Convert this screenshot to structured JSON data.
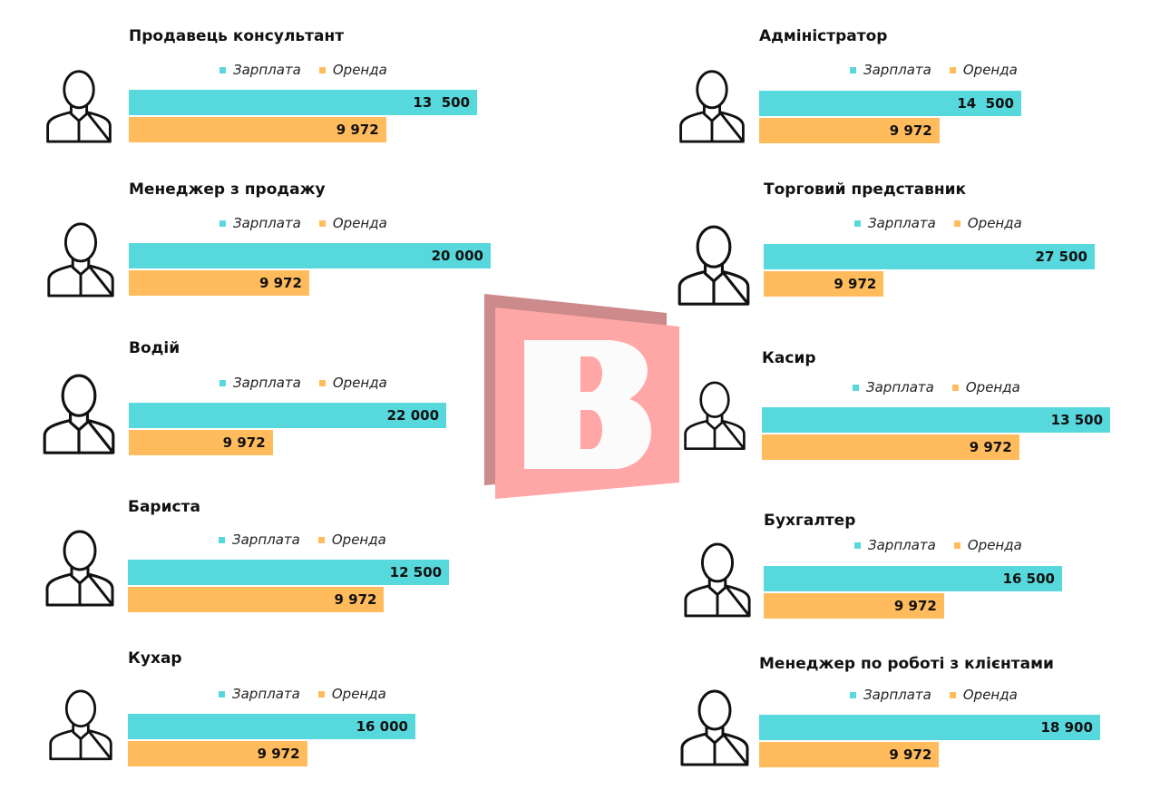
{
  "colors": {
    "salary": "#57d8dd",
    "rent": "#ffbb5c",
    "logo_back": "#cc8a8a",
    "logo_front": "#ffa6a6",
    "logo_letter": "#fbfbfb"
  },
  "legend": {
    "salary": "Зарплата",
    "rent": "Оренда"
  },
  "logo": {
    "letter": "B"
  },
  "chart_data": [
    {
      "type": "bar",
      "orientation": "horizontal",
      "title": "Продавець консультант",
      "icon": "saleswoman-icon",
      "series": [
        {
          "name": "Зарплата",
          "value": 13500,
          "label": "13  500"
        },
        {
          "name": "Оренда",
          "value": 9972,
          "label": "9 972"
        }
      ],
      "xlim": [
        0,
        14060
      ]
    },
    {
      "type": "bar",
      "orientation": "horizontal",
      "title": "Менеджер з продажу",
      "icon": "sales-manager-icon",
      "series": [
        {
          "name": "Зарплата",
          "value": 20000,
          "label": "20 000"
        },
        {
          "name": "Оренда",
          "value": 9972,
          "label": "9 972"
        }
      ],
      "xlim": [
        0,
        20050
      ]
    },
    {
      "type": "bar",
      "orientation": "horizontal",
      "title": "Водій",
      "icon": "driver-icon",
      "series": [
        {
          "name": "Зарплата",
          "value": 22000,
          "label": "22 000"
        },
        {
          "name": "Оренда",
          "value": 9972,
          "label": "9 972"
        }
      ],
      "xlim": [
        0,
        25140
      ]
    },
    {
      "type": "bar",
      "orientation": "horizontal",
      "title": "Бариста",
      "icon": "barista-icon",
      "series": [
        {
          "name": "Зарплата",
          "value": 12500,
          "label": "12 500"
        },
        {
          "name": "Оренда",
          "value": 9972,
          "label": "9 972"
        }
      ],
      "xlim": [
        0,
        14120
      ]
    },
    {
      "type": "bar",
      "orientation": "horizontal",
      "title": "Кухар",
      "icon": "cook-icon",
      "series": [
        {
          "name": "Зарплата",
          "value": 16000,
          "label": "16 000"
        },
        {
          "name": "Оренда",
          "value": 9972,
          "label": "9 972"
        }
      ],
      "xlim": [
        0,
        20190
      ]
    },
    {
      "type": "bar",
      "orientation": "horizontal",
      "title": "Адміністратор",
      "icon": "administrator-icon",
      "series": [
        {
          "name": "Зарплата",
          "value": 14500,
          "label": "14  500"
        },
        {
          "name": "Оренда",
          "value": 9972,
          "label": "9 972"
        }
      ],
      "xlim": [
        0,
        20070
      ]
    },
    {
      "type": "bar",
      "orientation": "horizontal",
      "title": "Торговий представник",
      "icon": "sales-rep-icon",
      "series": [
        {
          "name": "Зарплата",
          "value": 27500,
          "label": "27 500"
        },
        {
          "name": "Оренда",
          "value": 9972,
          "label": "9 972"
        }
      ],
      "xlim": [
        0,
        30140
      ]
    },
    {
      "type": "bar",
      "orientation": "horizontal",
      "title": "Касир",
      "icon": "cashier-icon",
      "series": [
        {
          "name": "Зарплата",
          "value": 13500,
          "label": "13 500"
        },
        {
          "name": "Оренда",
          "value": 9972,
          "label": "9 972"
        }
      ],
      "xlim": [
        0,
        14060
      ]
    },
    {
      "type": "bar",
      "orientation": "horizontal",
      "title": "Бухгалтер",
      "icon": "accountant-icon",
      "series": [
        {
          "name": "Зарплата",
          "value": 16500,
          "label": "16 500"
        },
        {
          "name": "Оренда",
          "value": 9972,
          "label": "9 972"
        }
      ],
      "xlim": [
        0,
        20060
      ]
    },
    {
      "type": "bar",
      "orientation": "horizontal",
      "title": "Менеджер по роботі з клієнтами",
      "icon": "client-manager-icon",
      "series": [
        {
          "name": "Зарплата",
          "value": 18900,
          "label": "18 900"
        },
        {
          "name": "Оренда",
          "value": 9972,
          "label": "9 972"
        }
      ],
      "xlim": [
        0,
        20110
      ]
    }
  ]
}
